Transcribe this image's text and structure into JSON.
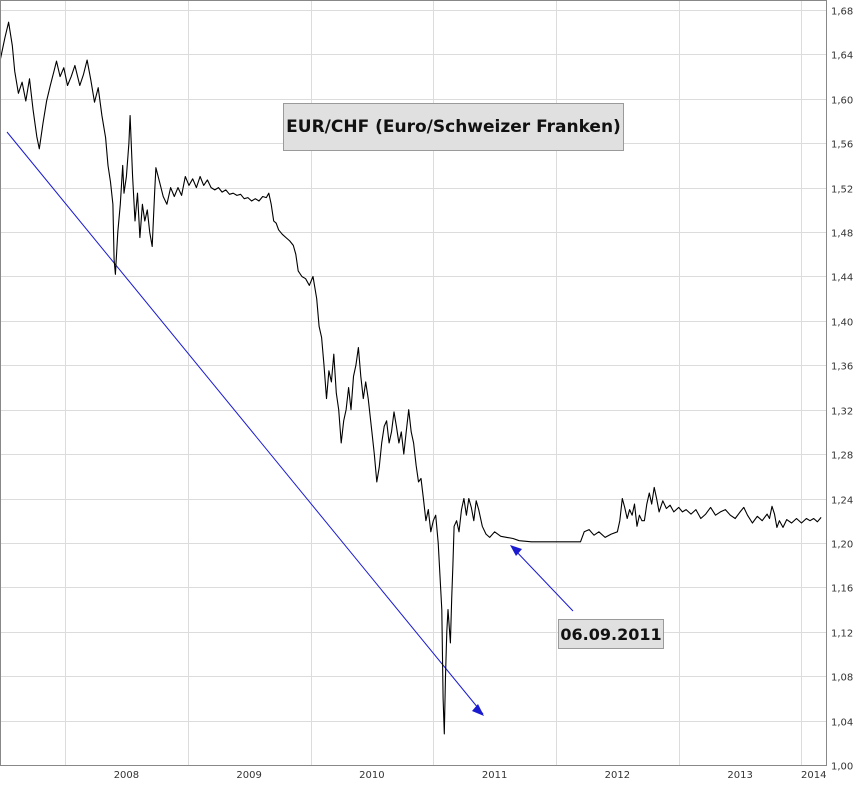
{
  "chart_data": {
    "type": "line",
    "title": "EUR/CHF (Euro/Schweizer Franken)",
    "xlabel": "",
    "ylabel": "",
    "x_range": [
      2007.47,
      2014.2
    ],
    "ylim": [
      1.0,
      1.68
    ],
    "y_ticks": [
      "1,00",
      "1,04",
      "1,08",
      "1,12",
      "1,16",
      "1,20",
      "1,24",
      "1,28",
      "1,32",
      "1,36",
      "1,40",
      "1,44",
      "1,48",
      "1,52",
      "1,56",
      "1,60",
      "1,64",
      "1,68"
    ],
    "x_ticks": [
      {
        "label": "2008",
        "year": 2008
      },
      {
        "label": "2009",
        "year": 2009
      },
      {
        "label": "2010",
        "year": 2010
      },
      {
        "label": "2011",
        "year": 2011
      },
      {
        "label": "2012",
        "year": 2012
      },
      {
        "label": "2013",
        "year": 2013
      },
      {
        "label": "2014",
        "year": 2014
      }
    ],
    "grid": true,
    "series": [
      {
        "color": "#000000",
        "points": [
          [
            2007.47,
            1.634
          ],
          [
            2007.51,
            1.655
          ],
          [
            2007.54,
            1.669
          ],
          [
            2007.57,
            1.648
          ],
          [
            2007.59,
            1.625
          ],
          [
            2007.62,
            1.605
          ],
          [
            2007.65,
            1.615
          ],
          [
            2007.68,
            1.598
          ],
          [
            2007.71,
            1.618
          ],
          [
            2007.74,
            1.59
          ],
          [
            2007.77,
            1.566
          ],
          [
            2007.79,
            1.555
          ],
          [
            2007.82,
            1.578
          ],
          [
            2007.85,
            1.598
          ],
          [
            2007.88,
            1.612
          ],
          [
            2007.91,
            1.625
          ],
          [
            2007.93,
            1.634
          ],
          [
            2007.96,
            1.62
          ],
          [
            2007.99,
            1.628
          ],
          [
            2008.02,
            1.612
          ],
          [
            2008.05,
            1.62
          ],
          [
            2008.08,
            1.63
          ],
          [
            2008.12,
            1.612
          ],
          [
            2008.15,
            1.622
          ],
          [
            2008.18,
            1.635
          ],
          [
            2008.21,
            1.617
          ],
          [
            2008.24,
            1.597
          ],
          [
            2008.27,
            1.61
          ],
          [
            2008.3,
            1.585
          ],
          [
            2008.33,
            1.565
          ],
          [
            2008.35,
            1.54
          ],
          [
            2008.37,
            1.525
          ],
          [
            2008.39,
            1.505
          ],
          [
            2008.4,
            1.455
          ],
          [
            2008.41,
            1.442
          ],
          [
            2008.43,
            1.48
          ],
          [
            2008.45,
            1.505
          ],
          [
            2008.47,
            1.54
          ],
          [
            2008.48,
            1.515
          ],
          [
            2008.5,
            1.53
          ],
          [
            2008.52,
            1.56
          ],
          [
            2008.53,
            1.585
          ],
          [
            2008.55,
            1.53
          ],
          [
            2008.57,
            1.49
          ],
          [
            2008.59,
            1.515
          ],
          [
            2008.61,
            1.475
          ],
          [
            2008.63,
            1.505
          ],
          [
            2008.65,
            1.49
          ],
          [
            2008.67,
            1.5
          ],
          [
            2008.69,
            1.48
          ],
          [
            2008.71,
            1.467
          ],
          [
            2008.73,
            1.515
          ],
          [
            2008.74,
            1.538
          ],
          [
            2008.77,
            1.525
          ],
          [
            2008.8,
            1.512
          ],
          [
            2008.83,
            1.505
          ],
          [
            2008.86,
            1.52
          ],
          [
            2008.89,
            1.512
          ],
          [
            2008.92,
            1.52
          ],
          [
            2008.95,
            1.513
          ],
          [
            2008.98,
            1.53
          ],
          [
            2009.01,
            1.522
          ],
          [
            2009.04,
            1.528
          ],
          [
            2009.07,
            1.52
          ],
          [
            2009.1,
            1.53
          ],
          [
            2009.13,
            1.522
          ],
          [
            2009.16,
            1.527
          ],
          [
            2009.19,
            1.52
          ],
          [
            2009.22,
            1.518
          ],
          [
            2009.25,
            1.52
          ],
          [
            2009.28,
            1.516
          ],
          [
            2009.31,
            1.518
          ],
          [
            2009.34,
            1.514
          ],
          [
            2009.37,
            1.515
          ],
          [
            2009.4,
            1.513
          ],
          [
            2009.43,
            1.514
          ],
          [
            2009.46,
            1.51
          ],
          [
            2009.49,
            1.511
          ],
          [
            2009.52,
            1.508
          ],
          [
            2009.55,
            1.51
          ],
          [
            2009.58,
            1.508
          ],
          [
            2009.61,
            1.512
          ],
          [
            2009.64,
            1.511
          ],
          [
            2009.66,
            1.515
          ],
          [
            2009.68,
            1.505
          ],
          [
            2009.7,
            1.49
          ],
          [
            2009.72,
            1.488
          ],
          [
            2009.74,
            1.482
          ],
          [
            2009.77,
            1.478
          ],
          [
            2009.8,
            1.475
          ],
          [
            2009.83,
            1.472
          ],
          [
            2009.86,
            1.468
          ],
          [
            2009.88,
            1.46
          ],
          [
            2009.9,
            1.445
          ],
          [
            2009.93,
            1.44
          ],
          [
            2009.96,
            1.438
          ],
          [
            2009.99,
            1.432
          ],
          [
            2010.02,
            1.44
          ],
          [
            2010.05,
            1.42
          ],
          [
            2010.07,
            1.395
          ],
          [
            2010.09,
            1.385
          ],
          [
            2010.11,
            1.36
          ],
          [
            2010.13,
            1.33
          ],
          [
            2010.15,
            1.355
          ],
          [
            2010.17,
            1.345
          ],
          [
            2010.19,
            1.37
          ],
          [
            2010.21,
            1.335
          ],
          [
            2010.23,
            1.32
          ],
          [
            2010.25,
            1.29
          ],
          [
            2010.27,
            1.31
          ],
          [
            2010.29,
            1.32
          ],
          [
            2010.31,
            1.34
          ],
          [
            2010.33,
            1.32
          ],
          [
            2010.35,
            1.35
          ],
          [
            2010.37,
            1.36
          ],
          [
            2010.39,
            1.376
          ],
          [
            2010.41,
            1.35
          ],
          [
            2010.43,
            1.33
          ],
          [
            2010.45,
            1.345
          ],
          [
            2010.47,
            1.33
          ],
          [
            2010.5,
            1.3
          ],
          [
            2010.52,
            1.28
          ],
          [
            2010.54,
            1.255
          ],
          [
            2010.56,
            1.268
          ],
          [
            2010.58,
            1.29
          ],
          [
            2010.6,
            1.305
          ],
          [
            2010.62,
            1.31
          ],
          [
            2010.64,
            1.29
          ],
          [
            2010.66,
            1.3
          ],
          [
            2010.68,
            1.318
          ],
          [
            2010.7,
            1.305
          ],
          [
            2010.72,
            1.29
          ],
          [
            2010.74,
            1.3
          ],
          [
            2010.76,
            1.28
          ],
          [
            2010.78,
            1.3
          ],
          [
            2010.8,
            1.32
          ],
          [
            2010.82,
            1.3
          ],
          [
            2010.84,
            1.29
          ],
          [
            2010.86,
            1.27
          ],
          [
            2010.88,
            1.255
          ],
          [
            2010.9,
            1.258
          ],
          [
            2010.92,
            1.24
          ],
          [
            2010.94,
            1.22
          ],
          [
            2010.96,
            1.23
          ],
          [
            2010.98,
            1.21
          ],
          [
            2011.0,
            1.22
          ],
          [
            2011.02,
            1.225
          ],
          [
            2011.04,
            1.2
          ],
          [
            2011.06,
            1.16
          ],
          [
            2011.07,
            1.14
          ],
          [
            2011.08,
            1.06
          ],
          [
            2011.09,
            1.028
          ],
          [
            2011.1,
            1.08
          ],
          [
            2011.11,
            1.12
          ],
          [
            2011.12,
            1.14
          ],
          [
            2011.14,
            1.11
          ],
          [
            2011.15,
            1.15
          ],
          [
            2011.16,
            1.18
          ],
          [
            2011.17,
            1.215
          ],
          [
            2011.19,
            1.22
          ],
          [
            2011.21,
            1.21
          ],
          [
            2011.23,
            1.23
          ],
          [
            2011.25,
            1.24
          ],
          [
            2011.27,
            1.225
          ],
          [
            2011.29,
            1.24
          ],
          [
            2011.31,
            1.232
          ],
          [
            2011.33,
            1.22
          ],
          [
            2011.35,
            1.238
          ],
          [
            2011.37,
            1.23
          ],
          [
            2011.4,
            1.215
          ],
          [
            2011.43,
            1.208
          ],
          [
            2011.46,
            1.205
          ],
          [
            2011.5,
            1.21
          ],
          [
            2011.55,
            1.206
          ],
          [
            2011.6,
            1.205
          ],
          [
            2011.65,
            1.204
          ],
          [
            2011.7,
            1.202
          ],
          [
            2011.8,
            1.201
          ],
          [
            2011.9,
            1.201
          ],
          [
            2012.0,
            1.201
          ],
          [
            2012.1,
            1.201
          ],
          [
            2012.2,
            1.201
          ],
          [
            2012.23,
            1.21
          ],
          [
            2012.27,
            1.212
          ],
          [
            2012.31,
            1.207
          ],
          [
            2012.35,
            1.21
          ],
          [
            2012.4,
            1.205
          ],
          [
            2012.45,
            1.208
          ],
          [
            2012.5,
            1.21
          ],
          [
            2012.52,
            1.22
          ],
          [
            2012.54,
            1.24
          ],
          [
            2012.56,
            1.232
          ],
          [
            2012.58,
            1.222
          ],
          [
            2012.6,
            1.23
          ],
          [
            2012.62,
            1.225
          ],
          [
            2012.64,
            1.235
          ],
          [
            2012.66,
            1.215
          ],
          [
            2012.68,
            1.225
          ],
          [
            2012.7,
            1.22
          ],
          [
            2012.72,
            1.22
          ],
          [
            2012.74,
            1.235
          ],
          [
            2012.76,
            1.245
          ],
          [
            2012.78,
            1.235
          ],
          [
            2012.8,
            1.25
          ],
          [
            2012.82,
            1.24
          ],
          [
            2012.84,
            1.228
          ],
          [
            2012.87,
            1.238
          ],
          [
            2012.9,
            1.231
          ],
          [
            2012.93,
            1.234
          ],
          [
            2012.96,
            1.228
          ],
          [
            2013.0,
            1.232
          ],
          [
            2013.03,
            1.228
          ],
          [
            2013.06,
            1.23
          ],
          [
            2013.1,
            1.226
          ],
          [
            2013.14,
            1.23
          ],
          [
            2013.18,
            1.222
          ],
          [
            2013.22,
            1.226
          ],
          [
            2013.26,
            1.232
          ],
          [
            2013.3,
            1.225
          ],
          [
            2013.34,
            1.228
          ],
          [
            2013.38,
            1.23
          ],
          [
            2013.42,
            1.225
          ],
          [
            2013.46,
            1.222
          ],
          [
            2013.5,
            1.228
          ],
          [
            2013.53,
            1.232
          ],
          [
            2013.56,
            1.225
          ],
          [
            2013.6,
            1.218
          ],
          [
            2013.64,
            1.224
          ],
          [
            2013.68,
            1.22
          ],
          [
            2013.72,
            1.226
          ],
          [
            2013.74,
            1.222
          ],
          [
            2013.76,
            1.233
          ],
          [
            2013.78,
            1.226
          ],
          [
            2013.8,
            1.214
          ],
          [
            2013.82,
            1.22
          ],
          [
            2013.85,
            1.214
          ],
          [
            2013.88,
            1.221
          ],
          [
            2013.92,
            1.218
          ],
          [
            2013.96,
            1.222
          ],
          [
            2014.0,
            1.218
          ],
          [
            2014.04,
            1.222
          ],
          [
            2014.07,
            1.22
          ],
          [
            2014.1,
            1.222
          ],
          [
            2014.13,
            1.219
          ],
          [
            2014.16,
            1.223
          ]
        ]
      }
    ],
    "annotations": [
      {
        "text": "06.09.2011"
      }
    ]
  }
}
